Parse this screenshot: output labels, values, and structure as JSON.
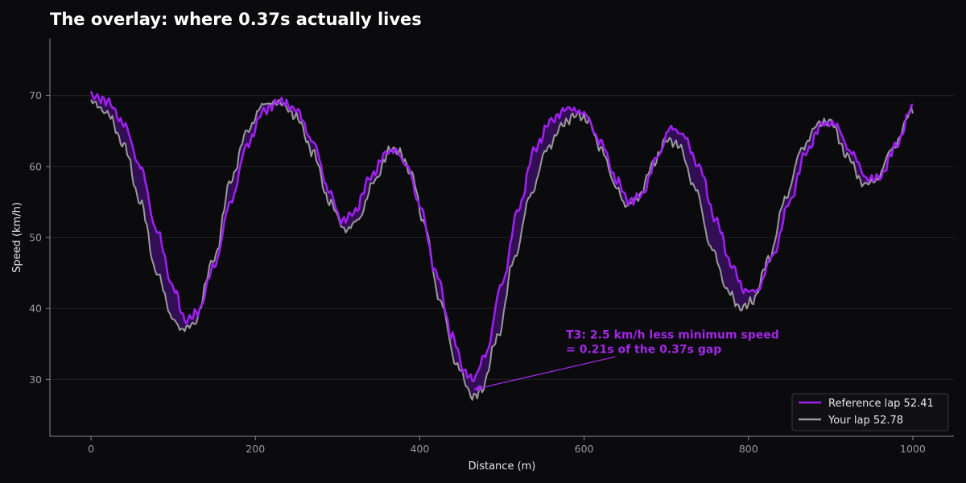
{
  "chart_data": {
    "type": "line",
    "title": "The overlay: where 0.37s actually lives",
    "xlabel": "Distance (m)",
    "ylabel": "Speed (km/h)",
    "xlim": [
      -50,
      1050
    ],
    "ylim": [
      22,
      78
    ],
    "xticks": [
      0,
      200,
      400,
      600,
      800,
      1000
    ],
    "yticks": [
      30,
      40,
      50,
      60,
      70
    ],
    "grid": "horizontal",
    "legend_position": "lower-right",
    "colors": {
      "background": "#0b0b0e",
      "reference": "#a020f0",
      "yours": "#9a9a9a",
      "gap_fill": "#3a1060",
      "grid": "#232327",
      "annotation": "#a228e6"
    },
    "series": [
      {
        "name": "Reference lap  52.41",
        "color": "#a020f0",
        "x": [
          0,
          20,
          40,
          60,
          80,
          100,
          115,
          130,
          150,
          170,
          190,
          210,
          230,
          250,
          270,
          290,
          305,
          320,
          340,
          360,
          370,
          385,
          400,
          420,
          440,
          455,
          465,
          480,
          500,
          520,
          540,
          560,
          580,
          600,
          620,
          640,
          655,
          670,
          690,
          705,
          720,
          740,
          760,
          780,
          795,
          810,
          830,
          850,
          870,
          890,
          905,
          925,
          945,
          960,
          980,
          1000
        ],
        "y": [
          70.0,
          69.2,
          66.0,
          60.0,
          51.0,
          43.0,
          38.3,
          39.5,
          46.0,
          55.0,
          63.0,
          67.8,
          69.2,
          68.0,
          63.5,
          56.5,
          52.3,
          53.5,
          58.5,
          62.0,
          62.3,
          60.0,
          54.5,
          45.0,
          36.0,
          31.0,
          30.0,
          33.5,
          43.5,
          54.0,
          62.5,
          66.5,
          68.2,
          67.5,
          63.5,
          58.0,
          55.0,
          56.0,
          61.5,
          65.5,
          64.5,
          60.0,
          52.5,
          46.0,
          42.5,
          42.5,
          47.5,
          55.0,
          62.0,
          66.0,
          66.0,
          62.0,
          58.2,
          58.5,
          63.0,
          68.5
        ]
      },
      {
        "name": "Your lap  52.78",
        "color": "#9a9a9a",
        "x": [
          0,
          20,
          40,
          60,
          80,
          100,
          110,
          125,
          150,
          170,
          190,
          210,
          230,
          250,
          270,
          290,
          310,
          325,
          345,
          365,
          375,
          390,
          405,
          425,
          445,
          465,
          475,
          495,
          515,
          535,
          555,
          575,
          590,
          605,
          620,
          640,
          650,
          665,
          685,
          700,
          715,
          735,
          755,
          775,
          790,
          805,
          825,
          845,
          865,
          885,
          900,
          920,
          940,
          955,
          975,
          1000
        ],
        "y": [
          69.2,
          67.5,
          63.0,
          55.0,
          45.0,
          38.5,
          37.0,
          37.8,
          47.0,
          58.0,
          65.0,
          68.8,
          69.0,
          67.0,
          62.0,
          55.0,
          51.0,
          52.5,
          58.0,
          62.5,
          62.0,
          59.0,
          52.0,
          41.0,
          32.0,
          27.5,
          28.5,
          36.0,
          47.0,
          56.0,
          62.5,
          66.0,
          67.3,
          66.5,
          62.5,
          57.0,
          54.5,
          55.5,
          60.5,
          63.8,
          63.0,
          57.0,
          48.5,
          42.5,
          40.0,
          41.0,
          47.0,
          55.5,
          62.5,
          66.0,
          66.3,
          61.5,
          57.5,
          58.0,
          62.5,
          68.0
        ]
      }
    ],
    "annotation": {
      "line1": "T3: 2.5 km/h less minimum speed",
      "line2": "= 0.21s of the 0.37s gap",
      "text_at": [
        578,
        35.8
      ],
      "arrow_from": [
        638,
        33.2
      ],
      "arrow_to": [
        466,
        28.6
      ]
    }
  }
}
